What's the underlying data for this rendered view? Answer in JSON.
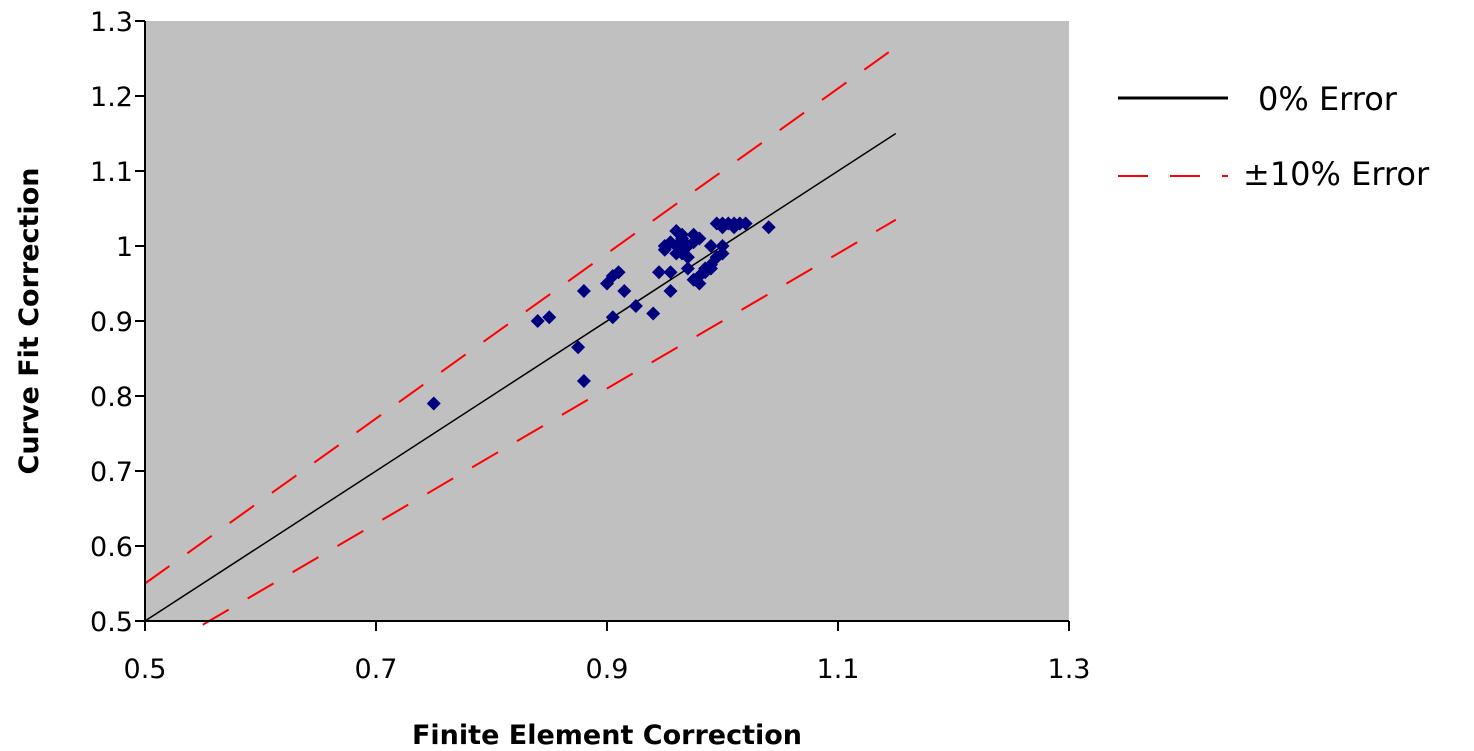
{
  "chart_data": {
    "type": "scatter",
    "xlabel": "Finite Element Correction",
    "ylabel": "Curve Fit Correction",
    "xlim": [
      0.5,
      1.3
    ],
    "ylim": [
      0.5,
      1.3
    ],
    "xticks": [
      "0.5",
      "0.7",
      "0.9",
      "1.1",
      "1.3"
    ],
    "yticks": [
      "0.5",
      "0.6",
      "0.7",
      "0.8",
      "0.9",
      "1",
      "1.1",
      "1.2",
      "1.3"
    ],
    "grid": false,
    "legend_position": "right",
    "plot_background": "#c0c0c0",
    "colors": {
      "points": "#00007f",
      "zero_line": "#000000",
      "band": "#ff0000"
    },
    "legend": [
      {
        "label": "0% Error",
        "style": "solid"
      },
      {
        "label": "±10% Error",
        "style": "dashed"
      }
    ],
    "lines": [
      {
        "label": "0% Error",
        "x": [
          0.5,
          1.15
        ],
        "y": [
          0.5,
          1.15
        ]
      },
      {
        "label": "+10% Error",
        "x": [
          0.5,
          1.15
        ],
        "y": [
          0.55,
          1.265
        ]
      },
      {
        "label": "-10% Error",
        "x": [
          0.55,
          1.15
        ],
        "y": [
          0.495,
          1.035
        ]
      }
    ],
    "points": {
      "x": [
        0.75,
        0.84,
        0.85,
        0.875,
        0.88,
        0.88,
        0.9,
        0.905,
        0.905,
        0.91,
        0.915,
        0.925,
        0.94,
        0.945,
        0.95,
        0.95,
        0.955,
        0.955,
        0.96,
        0.96,
        0.965,
        0.965,
        0.97,
        0.97,
        0.975,
        0.975,
        0.98,
        0.98,
        0.985,
        0.99,
        0.99,
        0.995,
        0.995,
        1.0,
        1.0,
        1.0,
        1.005,
        1.01,
        1.01,
        1.015,
        1.02,
        1.04,
        0.955,
        0.96,
        0.965,
        0.97,
        0.975,
        0.98,
        0.985,
        0.99,
        0.995,
        1.0
      ],
      "y": [
        0.79,
        0.9,
        0.905,
        0.865,
        0.82,
        0.94,
        0.95,
        0.96,
        0.905,
        0.965,
        0.94,
        0.92,
        0.91,
        0.965,
        0.995,
        1.0,
        0.965,
        1.005,
        1.0,
        1.02,
        0.99,
        1.01,
        0.97,
        1.0,
        0.955,
        1.015,
        0.96,
        1.01,
        0.965,
        0.97,
        1.0,
        1.03,
        0.985,
        1.025,
        1.0,
        0.99,
        1.03,
        1.025,
        1.03,
        1.03,
        1.03,
        1.025,
        0.94,
        0.99,
        1.015,
        0.985,
        1.005,
        0.95,
        0.97,
        0.975,
        0.985,
        1.03
      ]
    }
  }
}
